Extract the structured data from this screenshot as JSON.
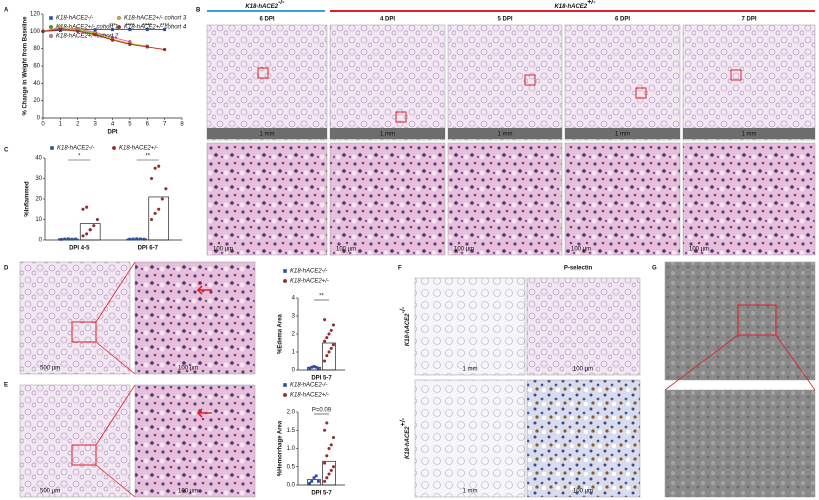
{
  "panel_labels": [
    "A",
    "B",
    "C",
    "D",
    "E",
    "F",
    "G"
  ],
  "panel_b": {
    "groups": [
      {
        "name": "K18-hACE2",
        "genotype": "-/-"
      },
      {
        "name": "K18-hACE2",
        "genotype": "+/-"
      }
    ],
    "columns": [
      "6 DPI",
      "4 DPI",
      "5 DPI",
      "6 DPI",
      "7 DPI"
    ],
    "scale_top": "1 mm",
    "scale_bottom": "100 µm"
  },
  "panel_d": {
    "scales": [
      "500 µm",
      "100 µm"
    ]
  },
  "panel_e": {
    "scales": [
      "500 µm",
      "100 µm"
    ]
  },
  "panel_f": {
    "title": "P-selectin",
    "rows": [
      {
        "name": "K18-hACE2",
        "genotype": "-/-"
      },
      {
        "name": "K18-hACE2",
        "genotype": "+/-"
      }
    ],
    "scales": [
      "1 mm",
      "100 µm"
    ]
  },
  "chart_data": [
    {
      "type": "line",
      "y_label": "% Change in Weight from Baseline",
      "x_label": "DPI",
      "x": [
        0,
        1,
        2,
        3,
        4,
        5,
        6,
        7
      ],
      "xlim": [
        0,
        8
      ],
      "xticks": [
        0,
        1,
        2,
        3,
        4,
        5,
        6,
        7,
        8
      ],
      "ylim": [
        0,
        120
      ],
      "yticks": [
        0,
        20,
        40,
        60,
        80,
        100,
        120
      ],
      "series": [
        {
          "name": "K18-hACE2-/-",
          "color": "#2b4fa0",
          "values": [
            100,
            101,
            102,
            102,
            102,
            102,
            102,
            102
          ]
        },
        {
          "name": "K18-hACE2+/- cohort 1",
          "color": "#3a9b3a",
          "values": [
            100,
            103,
            101,
            97,
            90,
            null,
            null,
            null
          ]
        },
        {
          "name": "K18-hACE2+/- cohort 2",
          "color": "#d36fb0",
          "values": [
            100,
            104,
            103,
            99,
            93,
            88,
            null,
            null
          ]
        },
        {
          "name": "K18-hACE2+/- cohort 3",
          "color": "#c9b52a",
          "values": [
            100,
            105,
            102,
            98,
            91,
            86,
            83,
            null
          ]
        },
        {
          "name": "K18-hACE2+/- cohort 4",
          "color": "#b22222",
          "values": [
            100,
            102,
            100,
            96,
            90,
            85,
            82,
            79
          ]
        }
      ],
      "annotations": [
        {
          "x": 4,
          "label": "***"
        },
        {
          "x": 5,
          "label": "****"
        },
        {
          "x": 6,
          "label": "****"
        },
        {
          "x": 7,
          "label": "****"
        }
      ]
    },
    {
      "type": "bar",
      "y_label": "%Inflammed",
      "categories": [
        "DPI 4-5",
        "DPI 6-7"
      ],
      "ylim": [
        0,
        40
      ],
      "yticks": [
        0,
        10,
        20,
        30,
        40
      ],
      "legend": "row",
      "series": [
        {
          "name": "K18-hACE2-/-",
          "color": "#2b4fa0",
          "values": [
            0.5,
            0.5
          ],
          "points": [
            [
              0.3,
              0.5,
              0.6,
              0.4,
              0.5
            ],
            [
              0.4,
              0.5,
              0.6,
              0.5,
              0.4
            ]
          ]
        },
        {
          "name": "K18-hACE2+/-",
          "color": "#b22222",
          "values": [
            8,
            21
          ],
          "points": [
            [
              2,
              3,
              5,
              7,
              10,
              15,
              16,
              5
            ],
            [
              10,
              13,
              15,
              20,
              25,
              30,
              35,
              36
            ]
          ]
        }
      ],
      "significance": [
        "*",
        "**"
      ]
    },
    {
      "type": "bar",
      "y_label": "%Edema Area",
      "categories": [
        "DPI 5-7"
      ],
      "ylim": [
        0,
        4
      ],
      "yticks": [
        0,
        1,
        2,
        3,
        4
      ],
      "legend": "column",
      "series": [
        {
          "name": "K18-hACE2-/-",
          "color": "#2b4fa0",
          "values": [
            0.15
          ],
          "points": [
            [
              0.1,
              0.15,
              0.2,
              0.15,
              0.1
            ]
          ]
        },
        {
          "name": "K18-hACE2+/-",
          "color": "#b22222",
          "values": [
            1.5
          ],
          "points": [
            [
              0.5,
              0.8,
              1.0,
              1.2,
              1.4,
              1.6,
              1.8,
              2.0,
              2.2,
              2.5,
              2.8
            ]
          ]
        }
      ],
      "significance": [
        "**"
      ]
    },
    {
      "type": "bar",
      "y_label": "%Hemorrhage Area",
      "categories": [
        "DPI 5-7"
      ],
      "ylim": [
        0,
        2
      ],
      "yticks": [
        {
          "value": 0,
          "label": "0.0"
        },
        {
          "value": 0.5,
          "label": "0.5"
        },
        {
          "value": 1,
          "label": "1.0"
        },
        {
          "value": 1.5,
          "label": "1.5"
        },
        {
          "value": 2,
          "label": "2.0"
        }
      ],
      "legend": "column",
      "series": [
        {
          "name": "K18-hACE2-/-",
          "color": "#2b4fa0",
          "values": [
            0.15
          ],
          "points": [
            [
              0.05,
              0.1,
              0.2,
              0.25,
              0.1
            ]
          ]
        },
        {
          "name": "K18-hACE2+/-",
          "color": "#b22222",
          "values": [
            0.65
          ],
          "points": [
            [
              0.1,
              0.2,
              0.3,
              0.4,
              0.5,
              0.6,
              0.8,
              1.0,
              1.1,
              1.3,
              1.5,
              1.7
            ]
          ]
        }
      ],
      "significance": [
        "P=0.09"
      ]
    }
  ]
}
